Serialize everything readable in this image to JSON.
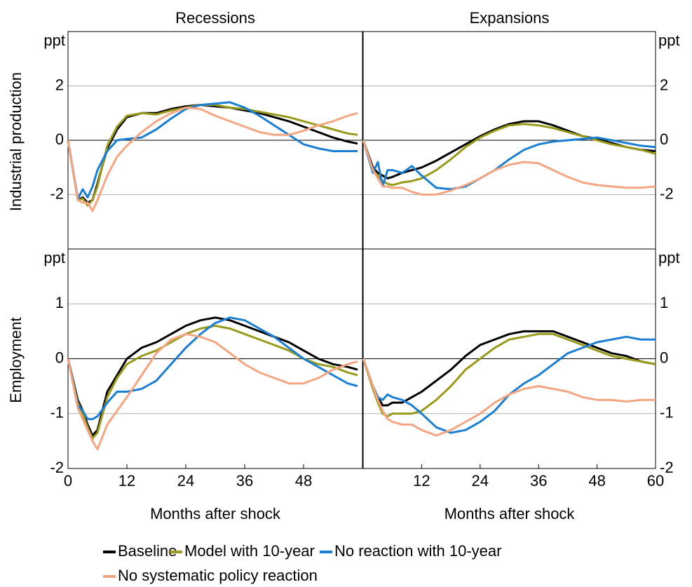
{
  "chart_data": [
    {
      "type": "line",
      "title": "Recessions",
      "ylabel": "Industrial production",
      "y_unit": "ppt",
      "x": [
        0,
        2,
        3,
        4,
        5,
        6,
        8,
        10,
        12,
        15,
        18,
        21,
        24,
        27,
        30,
        33,
        36,
        39,
        42,
        45,
        48,
        51,
        54,
        57,
        59
      ],
      "xlim": [
        0,
        60
      ],
      "ylim": [
        -4,
        4
      ],
      "yticks": [
        -2,
        0,
        2
      ],
      "grid": true,
      "series": [
        {
          "name": "Baseline",
          "color": "#000000",
          "values": [
            0,
            -2.2,
            -2.1,
            -2.3,
            -2.2,
            -1.6,
            -0.3,
            0.4,
            0.85,
            1.0,
            1.0,
            1.15,
            1.25,
            1.3,
            1.25,
            1.2,
            1.1,
            1.0,
            0.85,
            0.7,
            0.5,
            0.3,
            0.1,
            -0.05,
            -0.12
          ]
        },
        {
          "name": "Model with 10-year",
          "color": "#9a9a1a",
          "values": [
            0,
            -2.2,
            -2.15,
            -2.4,
            -2.2,
            -1.7,
            -0.2,
            0.5,
            0.9,
            1.0,
            0.95,
            1.1,
            1.2,
            1.3,
            1.3,
            1.2,
            1.15,
            1.05,
            0.95,
            0.85,
            0.7,
            0.55,
            0.4,
            0.25,
            0.2
          ]
        },
        {
          "name": "No reaction with 10-year",
          "color": "#1a7fd4",
          "values": [
            0,
            -2.15,
            -1.8,
            -2.1,
            -1.7,
            -1.1,
            -0.4,
            0.0,
            0.05,
            0.1,
            0.4,
            0.8,
            1.15,
            1.3,
            1.35,
            1.4,
            1.2,
            0.9,
            0.55,
            0.2,
            -0.15,
            -0.3,
            -0.4,
            -0.4,
            -0.4
          ]
        },
        {
          "name": "No systematic policy reaction",
          "color": "#f4a582",
          "values": [
            0,
            -2.2,
            -2.3,
            -2.3,
            -2.6,
            -2.2,
            -1.3,
            -0.6,
            -0.2,
            0.3,
            0.7,
            1.0,
            1.2,
            1.15,
            0.9,
            0.7,
            0.5,
            0.3,
            0.2,
            0.2,
            0.35,
            0.55,
            0.7,
            0.9,
            1.0
          ]
        }
      ]
    },
    {
      "type": "line",
      "title": "Expansions",
      "y_unit": "ppt",
      "x": [
        0,
        2,
        3,
        4,
        5,
        6,
        8,
        10,
        12,
        15,
        18,
        21,
        24,
        27,
        30,
        33,
        36,
        39,
        42,
        45,
        48,
        51,
        54,
        57,
        60
      ],
      "xlim": [
        0,
        60
      ],
      "ylim": [
        -4,
        4
      ],
      "yticks": [
        -2,
        0,
        2
      ],
      "grid": true,
      "series": [
        {
          "color": "#000000",
          "values": [
            0,
            -1.0,
            -1.2,
            -1.3,
            -1.4,
            -1.35,
            -1.2,
            -1.1,
            -1.0,
            -0.75,
            -0.45,
            -0.15,
            0.15,
            0.4,
            0.6,
            0.7,
            0.7,
            0.55,
            0.35,
            0.15,
            0.05,
            -0.1,
            -0.25,
            -0.35,
            -0.4
          ]
        },
        {
          "color": "#9a9a1a",
          "values": [
            0,
            -1.1,
            -1.3,
            -1.5,
            -1.6,
            -1.65,
            -1.55,
            -1.5,
            -1.4,
            -1.1,
            -0.7,
            -0.25,
            0.1,
            0.35,
            0.55,
            0.6,
            0.55,
            0.45,
            0.3,
            0.15,
            0.0,
            -0.15,
            -0.25,
            -0.35,
            -0.5
          ]
        },
        {
          "color": "#1a7fd4",
          "values": [
            0,
            -1.2,
            -0.8,
            -1.7,
            -1.1,
            -1.1,
            -1.2,
            -0.95,
            -1.3,
            -1.75,
            -1.8,
            -1.7,
            -1.4,
            -1.1,
            -0.7,
            -0.35,
            -0.15,
            -0.05,
            0.0,
            0.05,
            0.1,
            0.0,
            -0.1,
            -0.2,
            -0.25
          ]
        },
        {
          "color": "#f4a582",
          "values": [
            0,
            -1.1,
            -1.4,
            -1.7,
            -1.7,
            -1.75,
            -1.75,
            -1.9,
            -2.0,
            -2.0,
            -1.85,
            -1.65,
            -1.4,
            -1.1,
            -0.9,
            -0.8,
            -0.85,
            -1.1,
            -1.35,
            -1.55,
            -1.65,
            -1.7,
            -1.75,
            -1.75,
            -1.7
          ]
        }
      ]
    },
    {
      "type": "line",
      "ylabel": "Employment",
      "xlabel": "Months after shock",
      "y_unit": "ppt",
      "x": [
        0,
        2,
        3,
        4,
        5,
        6,
        8,
        10,
        12,
        15,
        18,
        21,
        24,
        27,
        30,
        33,
        36,
        39,
        42,
        45,
        48,
        51,
        54,
        57,
        59
      ],
      "xlim": [
        0,
        60
      ],
      "ylim": [
        -2,
        2
      ],
      "yticks": [
        -2,
        -1,
        0,
        1
      ],
      "xticks": [
        0,
        12,
        24,
        36,
        48
      ],
      "grid": true,
      "series": [
        {
          "color": "#000000",
          "values": [
            0,
            -0.75,
            -0.95,
            -1.2,
            -1.4,
            -1.3,
            -0.6,
            -0.3,
            0.0,
            0.2,
            0.3,
            0.45,
            0.6,
            0.7,
            0.75,
            0.7,
            0.6,
            0.5,
            0.4,
            0.3,
            0.15,
            0.0,
            -0.1,
            -0.15,
            -0.2
          ]
        },
        {
          "color": "#9a9a1a",
          "values": [
            0,
            -0.8,
            -1.0,
            -1.25,
            -1.45,
            -1.35,
            -0.7,
            -0.35,
            -0.1,
            0.05,
            0.15,
            0.3,
            0.45,
            0.55,
            0.6,
            0.55,
            0.45,
            0.35,
            0.25,
            0.15,
            0.0,
            -0.1,
            -0.15,
            -0.25,
            -0.3
          ]
        },
        {
          "color": "#1a7fd4",
          "values": [
            0,
            -0.85,
            -0.95,
            -1.1,
            -1.1,
            -1.05,
            -0.8,
            -0.6,
            -0.6,
            -0.55,
            -0.4,
            -0.1,
            0.2,
            0.45,
            0.65,
            0.75,
            0.7,
            0.55,
            0.4,
            0.2,
            0.0,
            -0.15,
            -0.3,
            -0.45,
            -0.5
          ]
        },
        {
          "color": "#f4a582",
          "values": [
            0,
            -0.9,
            -1.1,
            -1.3,
            -1.5,
            -1.65,
            -1.2,
            -0.95,
            -0.7,
            -0.3,
            0.1,
            0.35,
            0.45,
            0.4,
            0.3,
            0.1,
            -0.1,
            -0.25,
            -0.35,
            -0.45,
            -0.45,
            -0.35,
            -0.2,
            -0.1,
            -0.05
          ]
        }
      ]
    },
    {
      "type": "line",
      "xlabel": "Months after shock",
      "y_unit": "ppt",
      "x": [
        0,
        2,
        3,
        4,
        5,
        6,
        8,
        10,
        12,
        15,
        18,
        21,
        24,
        27,
        30,
        33,
        36,
        39,
        42,
        45,
        48,
        51,
        54,
        57,
        60
      ],
      "xlim": [
        0,
        60
      ],
      "ylim": [
        -2,
        2
      ],
      "yticks": [
        -2,
        -1,
        0,
        1
      ],
      "xticks": [
        12,
        24,
        36,
        48,
        60
      ],
      "grid": true,
      "series": [
        {
          "color": "#000000",
          "values": [
            0,
            -0.5,
            -0.7,
            -0.85,
            -0.85,
            -0.8,
            -0.8,
            -0.7,
            -0.6,
            -0.4,
            -0.2,
            0.05,
            0.25,
            0.35,
            0.45,
            0.5,
            0.5,
            0.5,
            0.4,
            0.3,
            0.2,
            0.1,
            0.05,
            -0.05,
            -0.1
          ]
        },
        {
          "color": "#9a9a1a",
          "values": [
            0,
            -0.55,
            -0.8,
            -1.0,
            -1.05,
            -1.0,
            -1.0,
            -1.0,
            -0.95,
            -0.75,
            -0.5,
            -0.2,
            0.0,
            0.2,
            0.35,
            0.4,
            0.45,
            0.45,
            0.35,
            0.25,
            0.15,
            0.05,
            0.0,
            -0.05,
            -0.1
          ]
        },
        {
          "color": "#1a7fd4",
          "values": [
            0,
            -0.5,
            -0.7,
            -0.75,
            -0.65,
            -0.7,
            -0.75,
            -0.85,
            -1.0,
            -1.25,
            -1.35,
            -1.3,
            -1.15,
            -0.95,
            -0.65,
            -0.45,
            -0.3,
            -0.1,
            0.1,
            0.2,
            0.3,
            0.35,
            0.4,
            0.35,
            0.35
          ]
        },
        {
          "color": "#f4a582",
          "values": [
            0,
            -0.5,
            -0.75,
            -0.95,
            -1.1,
            -1.15,
            -1.2,
            -1.2,
            -1.3,
            -1.4,
            -1.3,
            -1.15,
            -1.0,
            -0.8,
            -0.65,
            -0.55,
            -0.5,
            -0.55,
            -0.6,
            -0.7,
            -0.75,
            -0.75,
            -0.78,
            -0.75,
            -0.75
          ]
        }
      ]
    }
  ]
}
